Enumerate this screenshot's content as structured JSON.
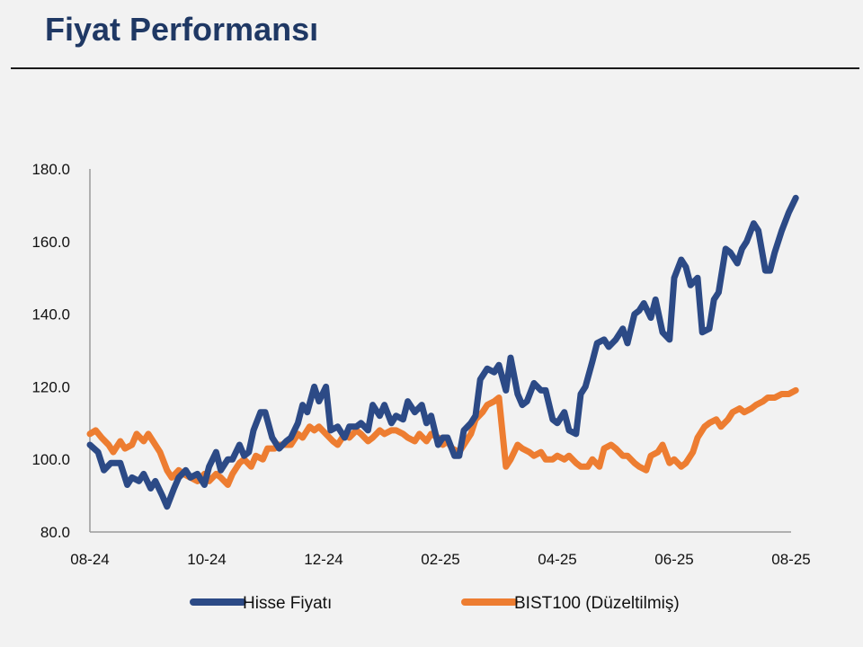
{
  "header": {
    "title": "Fiyat Performansı"
  },
  "colors": {
    "series1": "#2c4a86",
    "series2": "#ed7d31",
    "title": "#1f3864",
    "axis": "#999999"
  },
  "chart_data": {
    "type": "line",
    "ylim": [
      80,
      180
    ],
    "yticks": [
      "80.0",
      "100.0",
      "120.0",
      "140.0",
      "160.0",
      "180.0"
    ],
    "xticks": [
      "08-24",
      "10-24",
      "12-24",
      "02-25",
      "04-25",
      "06-25",
      "08-25"
    ],
    "legend": "bottom",
    "grid": false,
    "series": [
      {
        "name": "Hisse Fiyatı",
        "x": [
          0,
          0.07,
          0.12,
          0.18,
          0.26,
          0.32,
          0.36,
          0.42,
          0.46,
          0.52,
          0.56,
          0.62,
          0.66,
          0.72,
          0.76,
          0.82,
          0.86,
          0.92,
          0.98,
          1.02,
          1.08,
          1.12,
          1.18,
          1.22,
          1.28,
          1.32,
          1.36,
          1.4,
          1.46,
          1.5,
          1.56,
          1.62,
          1.68,
          1.72,
          1.78,
          1.82,
          1.86,
          1.92,
          1.96,
          2.02,
          2.06,
          2.12,
          2.18,
          2.22,
          2.28,
          2.32,
          2.38,
          2.42,
          2.48,
          2.52,
          2.58,
          2.62,
          2.68,
          2.72,
          2.78,
          2.84,
          2.88,
          2.92,
          2.98,
          3.02,
          3.06,
          3.12,
          3.16,
          3.2,
          3.26,
          3.3,
          3.34,
          3.4,
          3.46,
          3.5,
          3.56,
          3.6,
          3.66,
          3.7,
          3.74,
          3.8,
          3.86,
          3.9,
          3.96,
          4.0,
          4.06,
          4.1,
          4.16,
          4.2,
          4.24,
          4.3,
          4.34,
          4.4,
          4.44,
          4.5,
          4.56,
          4.6,
          4.66,
          4.7,
          4.74,
          4.8,
          4.84,
          4.9,
          4.96,
          5.0,
          5.06,
          5.1,
          5.14,
          5.2,
          5.24,
          5.3,
          5.34,
          5.38,
          5.44,
          5.48,
          5.54,
          5.58,
          5.62,
          5.68,
          5.72,
          5.78,
          5.82,
          5.86,
          5.92,
          5.98,
          6.04
        ],
        "y": [
          104,
          102,
          97,
          99,
          99,
          93,
          95,
          94,
          96,
          92,
          94,
          90,
          87,
          92,
          95,
          97,
          95,
          96,
          93,
          98,
          102,
          97,
          100,
          100,
          104,
          101,
          102,
          108,
          113,
          113,
          106,
          103,
          105,
          106,
          110,
          115,
          113,
          120,
          116,
          120,
          108,
          109,
          106,
          109,
          109,
          110,
          108,
          115,
          112,
          115,
          110,
          112,
          111,
          116,
          113,
          115,
          110,
          112,
          104,
          106,
          106,
          101,
          101,
          108,
          110,
          112,
          122,
          125,
          124,
          126,
          119,
          128,
          118,
          115,
          116,
          121,
          119,
          119,
          111,
          110,
          113,
          108,
          107,
          118,
          120,
          127,
          132,
          133,
          131,
          133,
          136,
          132,
          140,
          141,
          143,
          139,
          144,
          135,
          133,
          150,
          155,
          153,
          148,
          150,
          135,
          136,
          144,
          146,
          158,
          157,
          154,
          158,
          160,
          165,
          163,
          152,
          152,
          157,
          163,
          168,
          172
        ]
      },
      {
        "name": "BIST100 (Düzeltilmiş)",
        "x": [
          0,
          0.05,
          0.1,
          0.16,
          0.2,
          0.26,
          0.3,
          0.36,
          0.4,
          0.46,
          0.5,
          0.56,
          0.6,
          0.66,
          0.7,
          0.76,
          0.8,
          0.86,
          0.92,
          0.98,
          1.02,
          1.08,
          1.12,
          1.18,
          1.22,
          1.28,
          1.32,
          1.38,
          1.42,
          1.48,
          1.52,
          1.58,
          1.62,
          1.66,
          1.72,
          1.78,
          1.82,
          1.88,
          1.92,
          1.96,
          2.02,
          2.08,
          2.12,
          2.18,
          2.22,
          2.28,
          2.32,
          2.38,
          2.42,
          2.48,
          2.52,
          2.58,
          2.62,
          2.68,
          2.72,
          2.78,
          2.82,
          2.88,
          2.92,
          2.98,
          3.02,
          3.06,
          3.1,
          3.16,
          3.2,
          3.26,
          3.3,
          3.36,
          3.4,
          3.46,
          3.5,
          3.56,
          3.6,
          3.66,
          3.7,
          3.76,
          3.8,
          3.86,
          3.9,
          3.96,
          4.0,
          4.06,
          4.1,
          4.16,
          4.2,
          4.26,
          4.3,
          4.36,
          4.4,
          4.46,
          4.5,
          4.56,
          4.6,
          4.66,
          4.7,
          4.76,
          4.8,
          4.86,
          4.9,
          4.96,
          5.0,
          5.06,
          5.1,
          5.16,
          5.2,
          5.26,
          5.3,
          5.36,
          5.4,
          5.46,
          5.5,
          5.56,
          5.6,
          5.66,
          5.7,
          5.76,
          5.8,
          5.86,
          5.92,
          5.98,
          6.04
        ],
        "y": [
          107,
          108,
          106,
          104,
          102,
          105,
          103,
          104,
          107,
          105,
          107,
          104,
          102,
          97,
          95,
          97,
          96,
          95,
          94,
          96,
          94,
          96,
          95,
          93,
          96,
          99,
          100,
          98,
          101,
          100,
          103,
          103,
          104,
          104,
          104,
          107,
          106,
          109,
          108,
          109,
          107,
          105,
          104,
          107,
          106,
          108,
          107,
          105,
          106,
          108,
          107,
          108,
          108,
          107,
          106,
          105,
          107,
          105,
          107,
          106,
          104,
          105,
          103,
          102,
          104,
          107,
          111,
          113,
          115,
          116,
          117,
          98,
          100,
          104,
          103,
          102,
          101,
          102,
          100,
          100,
          101,
          100,
          101,
          99,
          98,
          98,
          100,
          98,
          103,
          104,
          103,
          101,
          101,
          99,
          98,
          97,
          101,
          102,
          104,
          99,
          100,
          98,
          99,
          102,
          106,
          109,
          110,
          111,
          109,
          111,
          113,
          114,
          113,
          114,
          115,
          116,
          117,
          117,
          118,
          118,
          119
        ]
      }
    ]
  }
}
